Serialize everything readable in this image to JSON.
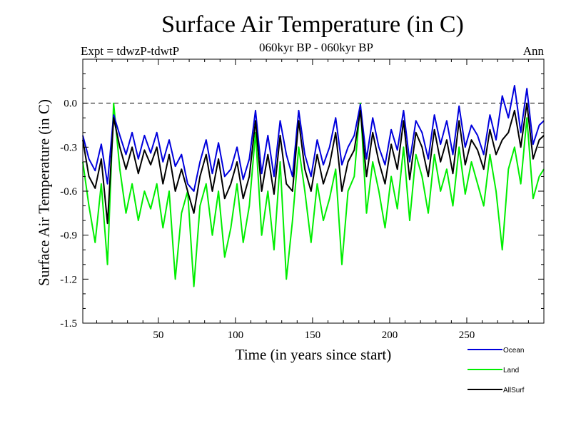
{
  "header": {
    "title": "Surface Air Temperature (in C)",
    "expt": "Expt = tdwzP-tdwtP",
    "subtitle": "060kyr BP - 060kyr BP",
    "season": "Ann"
  },
  "chart_data": {
    "type": "line",
    "title": "Surface Air Temperature (in C)",
    "xlabel": "Time (in years since start)",
    "ylabel": "Surface Air Temperature (in C)",
    "xlim": [
      1,
      300
    ],
    "ylim": [
      -1.5,
      0.3
    ],
    "x_ticks": [
      50,
      100,
      150,
      200,
      250
    ],
    "y_ticks": [
      -1.5,
      -1.2,
      -0.9,
      -0.6,
      -0.3,
      0.0
    ],
    "y_tick_labels": [
      "-1.5",
      "-1.2",
      "-0.9",
      "-0.6",
      "-0.3",
      "0.0"
    ],
    "reference_line": 0.0,
    "grid": false,
    "legend_position": "bottom-right, outside plot",
    "series": [
      {
        "name": "Ocean",
        "color": "#0000dd",
        "x": [
          1,
          5,
          9,
          13,
          17,
          21,
          25,
          29,
          33,
          37,
          41,
          45,
          49,
          53,
          57,
          61,
          65,
          69,
          73,
          77,
          81,
          85,
          89,
          93,
          97,
          101,
          105,
          109,
          113,
          117,
          121,
          125,
          129,
          133,
          137,
          141,
          145,
          149,
          153,
          157,
          161,
          165,
          169,
          173,
          177,
          181,
          185,
          189,
          193,
          197,
          201,
          205,
          209,
          213,
          217,
          221,
          225,
          229,
          233,
          237,
          241,
          245,
          249,
          253,
          257,
          261,
          265,
          269,
          273,
          277,
          281,
          285,
          289,
          293,
          297,
          300
        ],
        "values": [
          -0.22,
          -0.38,
          -0.46,
          -0.28,
          -0.55,
          -0.08,
          -0.22,
          -0.35,
          -0.2,
          -0.38,
          -0.22,
          -0.34,
          -0.2,
          -0.4,
          -0.25,
          -0.43,
          -0.35,
          -0.55,
          -0.6,
          -0.4,
          -0.25,
          -0.48,
          -0.27,
          -0.5,
          -0.45,
          -0.3,
          -0.52,
          -0.38,
          -0.05,
          -0.48,
          -0.22,
          -0.5,
          -0.12,
          -0.35,
          -0.5,
          -0.05,
          -0.35,
          -0.5,
          -0.25,
          -0.42,
          -0.3,
          -0.1,
          -0.42,
          -0.3,
          -0.22,
          -0.01,
          -0.38,
          -0.1,
          -0.3,
          -0.42,
          -0.18,
          -0.32,
          -0.05,
          -0.4,
          -0.12,
          -0.2,
          -0.38,
          -0.08,
          -0.28,
          -0.12,
          -0.35,
          -0.02,
          -0.3,
          -0.15,
          -0.22,
          -0.35,
          -0.08,
          -0.25,
          0.05,
          -0.1,
          0.12,
          -0.2,
          0.1,
          -0.28,
          -0.15,
          -0.12
        ]
      },
      {
        "name": "Land",
        "color": "#00ee00",
        "x": [
          1,
          5,
          9,
          13,
          17,
          21,
          25,
          29,
          33,
          37,
          41,
          45,
          49,
          53,
          57,
          61,
          65,
          69,
          73,
          77,
          81,
          85,
          89,
          93,
          97,
          101,
          105,
          109,
          113,
          117,
          121,
          125,
          129,
          133,
          137,
          141,
          145,
          149,
          153,
          157,
          161,
          165,
          169,
          173,
          177,
          181,
          185,
          189,
          193,
          197,
          201,
          205,
          209,
          213,
          217,
          221,
          225,
          229,
          233,
          237,
          241,
          245,
          249,
          253,
          257,
          261,
          265,
          269,
          273,
          277,
          281,
          285,
          289,
          293,
          297,
          300
        ],
        "values": [
          -0.4,
          -0.7,
          -0.95,
          -0.55,
          -1.1,
          0.0,
          -0.45,
          -0.75,
          -0.55,
          -0.8,
          -0.6,
          -0.72,
          -0.55,
          -0.85,
          -0.6,
          -1.2,
          -0.75,
          -0.6,
          -1.25,
          -0.7,
          -0.55,
          -0.9,
          -0.6,
          -1.05,
          -0.85,
          -0.55,
          -0.95,
          -0.7,
          -0.2,
          -0.9,
          -0.6,
          -1.0,
          -0.4,
          -1.2,
          -0.8,
          -0.3,
          -0.6,
          -0.95,
          -0.55,
          -0.8,
          -0.65,
          -0.45,
          -1.1,
          -0.6,
          -0.5,
          0.0,
          -0.75,
          -0.4,
          -0.6,
          -0.85,
          -0.5,
          -0.72,
          -0.3,
          -0.8,
          -0.35,
          -0.5,
          -0.75,
          -0.35,
          -0.6,
          -0.45,
          -0.7,
          -0.3,
          -0.62,
          -0.4,
          -0.55,
          -0.7,
          -0.35,
          -0.6,
          -1.0,
          -0.45,
          -0.3,
          -0.55,
          -0.1,
          -0.65,
          -0.5,
          -0.45
        ]
      },
      {
        "name": "AllSurf",
        "color": "#000000",
        "x": [
          1,
          5,
          9,
          13,
          17,
          21,
          25,
          29,
          33,
          37,
          41,
          45,
          49,
          53,
          57,
          61,
          65,
          69,
          73,
          77,
          81,
          85,
          89,
          93,
          97,
          101,
          105,
          109,
          113,
          117,
          121,
          125,
          129,
          133,
          137,
          141,
          145,
          149,
          153,
          157,
          161,
          165,
          169,
          173,
          177,
          181,
          185,
          189,
          193,
          197,
          201,
          205,
          209,
          213,
          217,
          221,
          225,
          229,
          233,
          237,
          241,
          245,
          249,
          253,
          257,
          261,
          265,
          269,
          273,
          277,
          281,
          285,
          289,
          293,
          297,
          300
        ],
        "values": [
          -0.25,
          -0.5,
          -0.58,
          -0.38,
          -0.82,
          -0.1,
          -0.3,
          -0.45,
          -0.3,
          -0.48,
          -0.32,
          -0.42,
          -0.3,
          -0.55,
          -0.35,
          -0.6,
          -0.45,
          -0.6,
          -0.75,
          -0.5,
          -0.35,
          -0.6,
          -0.38,
          -0.65,
          -0.55,
          -0.4,
          -0.65,
          -0.5,
          -0.12,
          -0.6,
          -0.35,
          -0.62,
          -0.22,
          -0.55,
          -0.6,
          -0.12,
          -0.45,
          -0.6,
          -0.35,
          -0.55,
          -0.42,
          -0.2,
          -0.6,
          -0.4,
          -0.32,
          -0.05,
          -0.5,
          -0.2,
          -0.4,
          -0.55,
          -0.28,
          -0.45,
          -0.12,
          -0.52,
          -0.2,
          -0.3,
          -0.5,
          -0.18,
          -0.4,
          -0.25,
          -0.48,
          -0.12,
          -0.42,
          -0.25,
          -0.32,
          -0.45,
          -0.18,
          -0.35,
          -0.25,
          -0.2,
          -0.05,
          -0.3,
          0.0,
          -0.38,
          -0.25,
          -0.22
        ]
      }
    ]
  }
}
